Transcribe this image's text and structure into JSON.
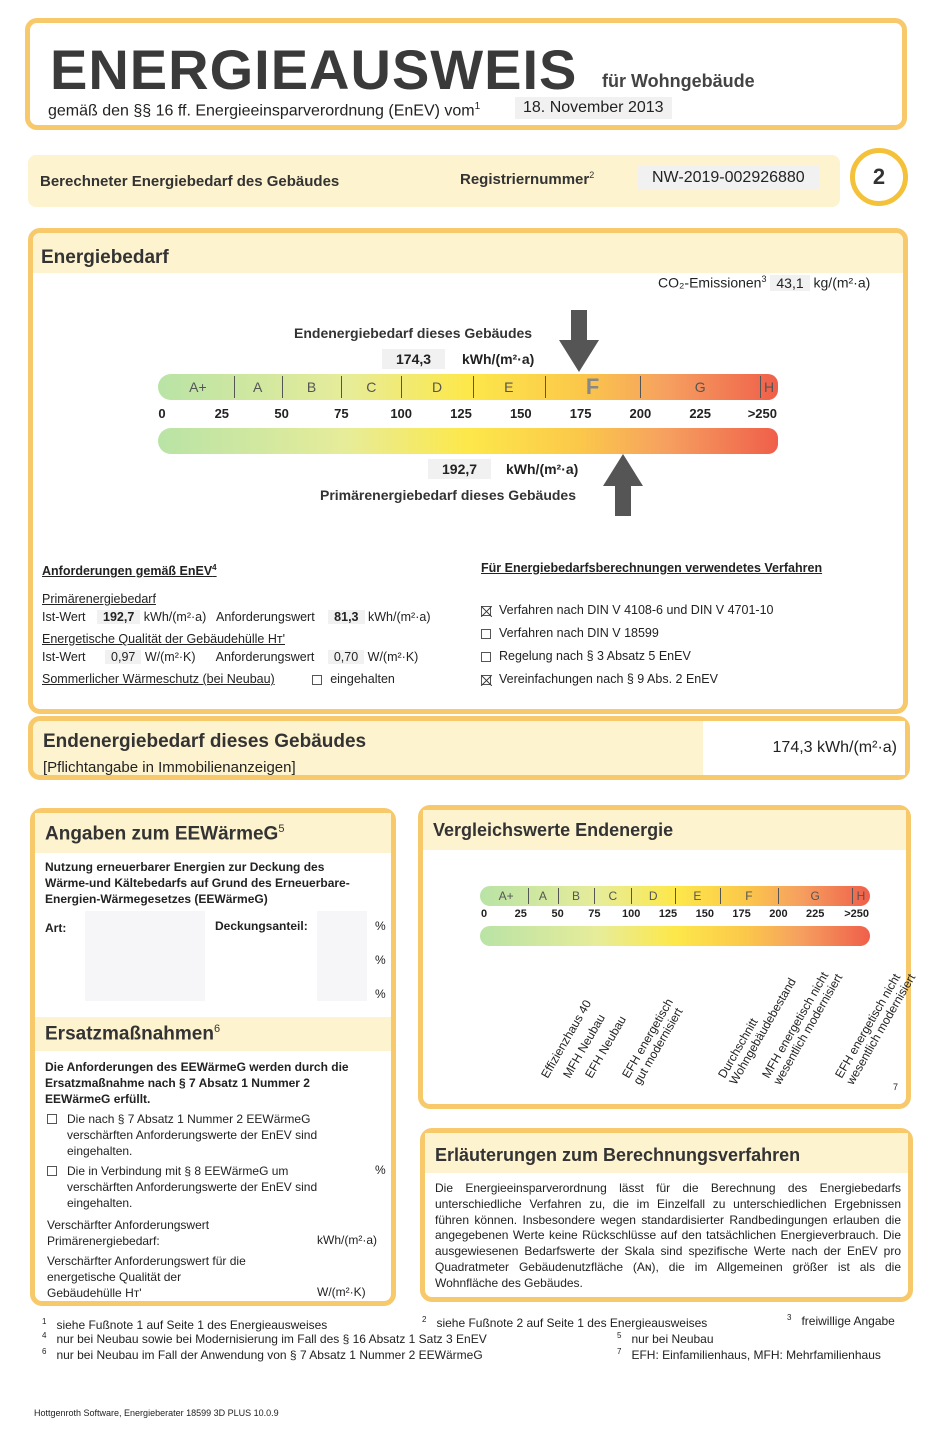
{
  "header": {
    "title": "ENERGIEAUSWEIS",
    "subtitle": "für Wohngebäude",
    "law": "gemäß den §§ 16 ff. Energieeinsparverordnung (EnEV) vom",
    "law_sup": "1",
    "date": "18. November 2013"
  },
  "reg": {
    "label": "Berechneter Energiebedarf des Gebäudes",
    "reg_label": "Registriernummer",
    "reg_sup": "2",
    "reg_value": "NW-2019-002926880",
    "page": "2"
  },
  "energy": {
    "title": "Energiebedarf",
    "co2_label": "CO₂-Emissionen",
    "co2_sup": "3",
    "co2_value": "43,1",
    "co2_unit": "kg/(m²·a)",
    "end_label": "Endenergiebedarf dieses Gebäudes",
    "end_value": "174,3",
    "end_unit": "kWh/(m²·a)",
    "prim_label": "Primärenergiebedarf dieses Gebäudes",
    "prim_value": "192,7",
    "prim_unit": "kWh/(m²·a)",
    "classes": [
      "A+",
      "A",
      "B",
      "C",
      "D",
      "E",
      "F",
      "G",
      "H"
    ],
    "active_class": "F",
    "ticks": [
      "0",
      "25",
      "50",
      "75",
      "100",
      "125",
      "150",
      "175",
      "200",
      "225",
      ">250"
    ],
    "end_marker": 174.3,
    "prim_marker": 192.7
  },
  "req": {
    "title": "Anforderungen gemäß EnEV",
    "title_sup": "4",
    "prim_title": "Primärenergiebedarf",
    "ist": "Ist-Wert",
    "ist_prim": "192,7",
    "unit_prim": "kWh/(m²·a)",
    "anf": "Anforderungswert",
    "anf_prim": "81,3",
    "hull_title": "Energetische Qualität der Gebäudehülle Hт'",
    "ist_hull": "0,97",
    "unit_hull": "W/(m²·K)",
    "anf_hull": "0,70",
    "summer": "Sommerlicher Wärmeschutz (bei Neubau)",
    "summer_cb": "eingehalten"
  },
  "method": {
    "title": "Für Energiebedarfsberechnungen verwendetes Verfahren",
    "items": [
      {
        "label": "Verfahren nach DIN V 4108-6 und DIN V 4701-10",
        "checked": true
      },
      {
        "label": "Verfahren nach DIN V 18599",
        "checked": false
      },
      {
        "label": "Regelung nach § 3 Absatz 5 EnEV",
        "checked": false
      },
      {
        "label": "Vereinfachungen nach § 9 Abs. 2 EnEV",
        "checked": true
      }
    ]
  },
  "endstrip": {
    "title": "Endenergiebedarf dieses Gebäudes",
    "note": "[Pflichtangabe in Immobilienanzeigen]",
    "value": "174,3 kWh/(m²·a)"
  },
  "eew": {
    "title": "Angaben zum EEWärmeG",
    "sup": "5",
    "intro": "Nutzung erneuerbarer Energien zur Deckung des Wärme-und Kältebedarfs auf Grund des Erneuerbare-Energien-Wärmegesetzes (EEWärmeG)",
    "art": "Art:",
    "deck": "Deckungsanteil:",
    "pct": "%",
    "ers_title": "Ersatzmaßnahmen",
    "ers_sup": "6",
    "ers_intro": "Die Anforderungen des EEWärmeG werden durch die Ersatzmaßnahme nach § 7 Absatz 1 Nummer 2 EEWärmeG erfüllt.",
    "cb1": "Die nach § 7 Absatz 1 Nummer 2 EEWärmeG verschärften Anforderungswerte der EnEV sind eingehalten.",
    "cb2": "Die in Verbindung mit § 8 EEWärmeG um verschärften Anforderungswerte der EnEV sind eingehalten.",
    "v1": "Verschärfter Anforderungswert Primärenergiebedarf:",
    "v1_unit": "kWh/(m²·a)",
    "v2": "Verschärfter Anforderungswert für die energetische Qualität der Gebäudehülle Hт'",
    "v2_unit": "W/(m²·K)"
  },
  "cmp": {
    "title": "Vergleichswerte Endenergie",
    "footnote": "7",
    "labels": [
      {
        "text": "Effizienzhaus 40",
        "v": 40
      },
      {
        "text": "MFH Neubau",
        "v": 55
      },
      {
        "text": "EFH Neubau",
        "v": 70
      },
      {
        "text": "EFH energetisch\ngut modernisiert",
        "v": 95
      },
      {
        "text": "Durchschnitt\nWohngebäudebestand",
        "v": 160
      },
      {
        "text": "MFH energetisch nicht\nwesentlich modernisiert",
        "v": 190
      },
      {
        "text": "EFH energetisch nicht\nwesentlich modernisiert",
        "v": 240
      }
    ]
  },
  "expl": {
    "title": "Erläuterungen zum Berechnungsverfahren",
    "text": "Die Energieeinsparverordnung lässt für die Berechnung des Energiebedarfs unterschiedliche Verfahren zu, die im Einzelfall zu unterschiedlichen Ergebnissen führen können. Insbesondere wegen standardisierter Randbedingungen erlauben die angegebenen Werte keine Rückschlüsse auf den tatsächlichen Energieverbrauch. Die ausgewiesenen Bedarfswerte der Skala sind spezifische Werte nach der EnEV pro Quadratmeter Gebäudenutzfläche (Aɴ), die im Allgemeinen größer ist als die Wohnfläche des Gebäudes."
  },
  "footnotes": [
    {
      "n": "1",
      "t": "siehe Fußnote 1 auf Seite 1 des Energieausweises"
    },
    {
      "n": "2",
      "t": "siehe Fußnote 2 auf Seite 1 des Energieausweises"
    },
    {
      "n": "3",
      "t": "freiwillige Angabe"
    },
    {
      "n": "4",
      "t": "nur bei Neubau sowie bei Modernisierung im Fall des § 16 Absatz 1 Satz 3 EnEV"
    },
    {
      "n": "5",
      "t": "nur bei Neubau"
    },
    {
      "n": "6",
      "t": "nur bei Neubau im Fall der Anwendung von § 7 Absatz 1 Nummer 2 EEWärmeG"
    },
    {
      "n": "7",
      "t": "EFH: Einfamilienhaus, MFH: Mehrfamilienhaus"
    }
  ],
  "software": "Hottgenroth Software, Energieberater 18599 3D PLUS 10.0.9"
}
